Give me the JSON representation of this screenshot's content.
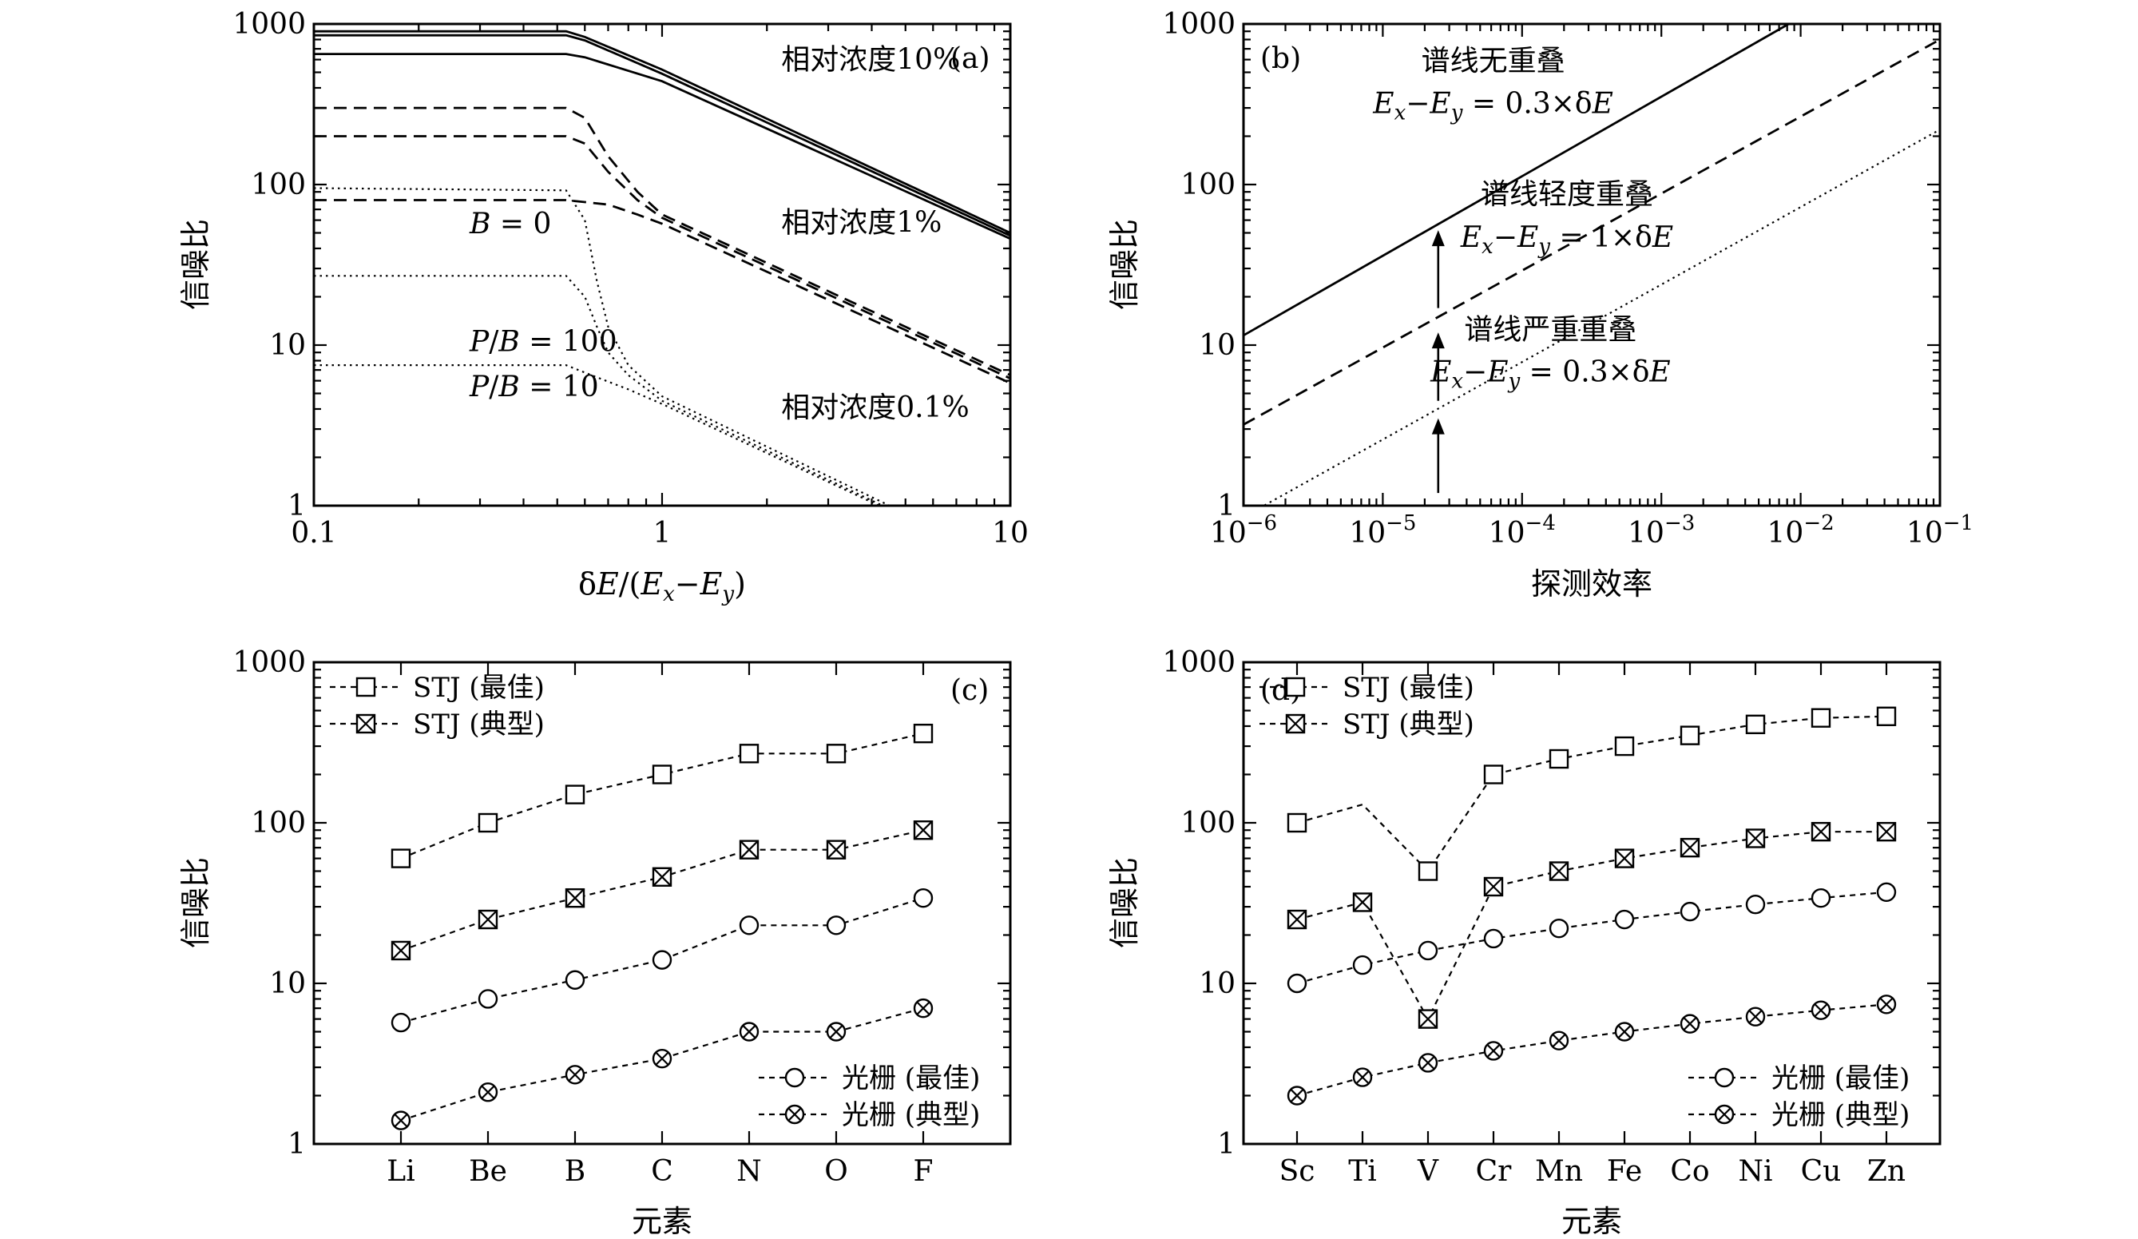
{
  "chart_data": [
    {
      "type": "line",
      "panel_label": "(a)",
      "xlabel": "δE/(E_x−E_y)",
      "ylabel": "信噪比",
      "xscale": "log",
      "yscale": "log",
      "xlim": [
        0.1,
        10
      ],
      "ylim": [
        1,
        1000
      ],
      "xticks": [
        {
          "value": 0.1,
          "label": "0.1"
        },
        {
          "value": 1,
          "label": "1"
        },
        {
          "value": 10,
          "label": "10"
        }
      ],
      "yticks": [
        {
          "value": 1,
          "label": "1"
        },
        {
          "value": 10,
          "label": "10"
        },
        {
          "value": 100,
          "label": "100"
        },
        {
          "value": 1000,
          "label": "1000"
        }
      ],
      "series": [
        {
          "style": "solid",
          "points": [
            [
              0.1,
              900
            ],
            [
              0.53,
              900
            ],
            [
              0.6,
              830
            ],
            [
              1,
              520
            ],
            [
              10,
              50
            ]
          ]
        },
        {
          "style": "solid",
          "points": [
            [
              0.1,
              850
            ],
            [
              0.53,
              850
            ],
            [
              0.6,
              790
            ],
            [
              1,
              490
            ],
            [
              10,
              48
            ]
          ]
        },
        {
          "style": "solid",
          "points": [
            [
              0.1,
              650
            ],
            [
              0.53,
              650
            ],
            [
              0.6,
              620
            ],
            [
              1,
              440
            ],
            [
              10,
              46
            ]
          ]
        },
        {
          "style": "dashed",
          "points": [
            [
              0.1,
              300
            ],
            [
              0.53,
              300
            ],
            [
              0.6,
              260
            ],
            [
              0.7,
              150
            ],
            [
              0.85,
              90
            ],
            [
              1,
              65
            ],
            [
              10,
              6.5
            ]
          ]
        },
        {
          "style": "dashed",
          "points": [
            [
              0.1,
              200
            ],
            [
              0.53,
              200
            ],
            [
              0.6,
              180
            ],
            [
              0.7,
              120
            ],
            [
              0.85,
              80
            ],
            [
              1,
              62
            ],
            [
              10,
              6.2
            ]
          ]
        },
        {
          "style": "dashed",
          "points": [
            [
              0.1,
              80
            ],
            [
              0.53,
              80
            ],
            [
              0.7,
              75
            ],
            [
              0.85,
              65
            ],
            [
              1,
              57
            ],
            [
              10,
              5.8
            ]
          ]
        },
        {
          "style": "dotted",
          "points": [
            [
              0.1,
              95
            ],
            [
              0.53,
              92
            ],
            [
              0.6,
              60
            ],
            [
              0.65,
              25
            ],
            [
              0.7,
              13
            ],
            [
              0.8,
              7.5
            ],
            [
              1,
              4.8
            ],
            [
              4.5,
              1
            ]
          ]
        },
        {
          "style": "dotted",
          "points": [
            [
              0.1,
              27
            ],
            [
              0.53,
              27
            ],
            [
              0.6,
              20
            ],
            [
              0.65,
              13
            ],
            [
              0.7,
              9
            ],
            [
              0.8,
              6.5
            ],
            [
              1,
              4.5
            ],
            [
              4.3,
              1
            ]
          ]
        },
        {
          "style": "dotted",
          "points": [
            [
              0.1,
              7.5
            ],
            [
              0.53,
              7.5
            ],
            [
              0.65,
              6.3
            ],
            [
              0.8,
              5.3
            ],
            [
              1,
              4.3
            ],
            [
              4.2,
              1
            ]
          ]
        }
      ],
      "annotations": [
        {
          "text": "相对浓度10%",
          "x": 2.2,
          "y": 600
        },
        {
          "text": "相对浓度1%",
          "x": 2.2,
          "y": 58
        },
        {
          "text": "相对浓度0.1%",
          "x": 2.2,
          "y": 4.1
        },
        {
          "text": "B = 0",
          "x": 0.28,
          "y": 57
        },
        {
          "text": "P/B = 100",
          "x": 0.28,
          "y": 10.5
        },
        {
          "text": "P/B = 10",
          "x": 0.28,
          "y": 5.5
        }
      ]
    },
    {
      "type": "line",
      "panel_label": "(b)",
      "xlabel": "探测效率",
      "ylabel": "信噪比",
      "xscale": "log",
      "yscale": "log",
      "xlim": [
        1e-06,
        0.1
      ],
      "ylim": [
        1,
        1000
      ],
      "xticks": [
        {
          "value": 1e-06,
          "label": "10⁻⁶"
        },
        {
          "value": 1e-05,
          "label": "10⁻⁵"
        },
        {
          "value": 0.0001,
          "label": "10⁻⁴"
        },
        {
          "value": 0.001,
          "label": "10⁻³"
        },
        {
          "value": 0.01,
          "label": "10⁻²"
        },
        {
          "value": 0.1,
          "label": "10⁻¹"
        }
      ],
      "yticks": [
        {
          "value": 1,
          "label": "1"
        },
        {
          "value": 10,
          "label": "10"
        },
        {
          "value": 100,
          "label": "100"
        },
        {
          "value": 1000,
          "label": "1000"
        }
      ],
      "series": [
        {
          "style": "solid",
          "points": [
            [
              1e-06,
              11.5
            ],
            [
              0.0082,
              1000
            ]
          ]
        },
        {
          "style": "dashed",
          "points": [
            [
              1e-06,
              3.2
            ],
            [
              0.1,
              800
            ]
          ]
        },
        {
          "style": "dotted",
          "points": [
            [
              1e-06,
              0.85
            ],
            [
              0.1,
              220
            ]
          ]
        }
      ],
      "arrows": [
        {
          "x": 2.5e-05,
          "from": 1.2,
          "to": 3.5
        },
        {
          "x": 2.5e-05,
          "from": 4.5,
          "to": 12
        },
        {
          "x": 2.5e-05,
          "from": 17,
          "to": 52
        }
      ],
      "annotations": [
        {
          "text": "谱线无重叠",
          "x": 6.2e-05,
          "y": 590
        },
        {
          "text": "E_x−E_y = 0.3×δE",
          "x": 6.2e-05,
          "y": 320
        },
        {
          "text": "谱线轻度重叠",
          "x": 0.00021,
          "y": 87
        },
        {
          "text": "E_x−E_y = 1×δE",
          "x": 0.00021,
          "y": 47
        },
        {
          "text": "谱线严重重叠",
          "x": 0.00016,
          "y": 12.5
        },
        {
          "text": "E_x−E_y = 0.3×δE",
          "x": 0.00016,
          "y": 6.8
        }
      ]
    },
    {
      "type": "line",
      "panel_label": "(c)",
      "xlabel": "元素",
      "ylabel": "信噪比",
      "yscale": "log",
      "ylim": [
        1,
        1000
      ],
      "categories": [
        "Li",
        "Be",
        "B",
        "C",
        "N",
        "O",
        "F"
      ],
      "yticks": [
        {
          "value": 1,
          "label": "1"
        },
        {
          "value": 10,
          "label": "10"
        },
        {
          "value": 100,
          "label": "100"
        },
        {
          "value": 1000,
          "label": "1000"
        }
      ],
      "series": [
        {
          "name": "STJ (最佳)",
          "marker": "square",
          "values": [
            60,
            100,
            150,
            200,
            270,
            270,
            360
          ]
        },
        {
          "name": "STJ (典型)",
          "marker": "boxed-x",
          "values": [
            16,
            25,
            34,
            46,
            68,
            68,
            90
          ]
        },
        {
          "name": "光栅 (最佳)",
          "marker": "circle",
          "values": [
            5.7,
            8,
            10.5,
            14,
            23,
            23,
            34
          ]
        },
        {
          "name": "光栅 (典型)",
          "marker": "circled-x",
          "values": [
            1.4,
            2.1,
            2.7,
            3.4,
            5,
            5,
            7
          ]
        }
      ]
    },
    {
      "type": "line",
      "panel_label": "(d)",
      "xlabel": "元素",
      "ylabel": "信噪比",
      "yscale": "log",
      "ylim": [
        1,
        1000
      ],
      "categories": [
        "Sc",
        "Ti",
        "V",
        "Cr",
        "Mn",
        "Fe",
        "Co",
        "Ni",
        "Cu",
        "Zn"
      ],
      "yticks": [
        {
          "value": 1,
          "label": "1"
        },
        {
          "value": 10,
          "label": "10"
        },
        {
          "value": 100,
          "label": "100"
        },
        {
          "value": 1000,
          "label": "1000"
        }
      ],
      "series": [
        {
          "name": "STJ (最佳)",
          "marker": "square",
          "values": [
            100,
            130,
            50,
            200,
            250,
            300,
            350,
            410,
            450,
            460
          ],
          "markerless": [
            1
          ]
        },
        {
          "name": "STJ (典型)",
          "marker": "boxed-x",
          "values": [
            25,
            32,
            6,
            40,
            50,
            60,
            70,
            80,
            88,
            88
          ]
        },
        {
          "name": "光栅 (最佳)",
          "marker": "circle",
          "values": [
            10,
            13,
            16,
            19,
            22,
            25,
            28,
            31,
            34,
            37
          ]
        },
        {
          "name": "光栅 (典型)",
          "marker": "circled-x",
          "values": [
            2,
            2.6,
            3.2,
            3.8,
            4.4,
            5,
            5.6,
            6.2,
            6.8,
            7.4
          ]
        }
      ]
    }
  ]
}
